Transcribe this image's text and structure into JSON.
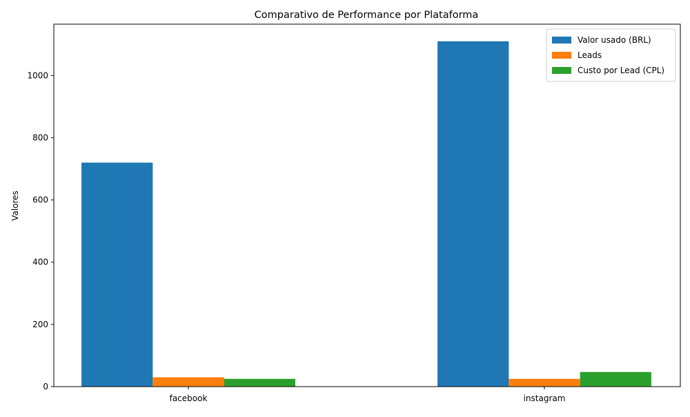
{
  "chart_data": {
    "type": "bar",
    "title": "Comparativo de Performance por Plataforma",
    "xlabel": "",
    "ylabel": "Valores",
    "categories": [
      "facebook",
      "instagram"
    ],
    "series": [
      {
        "name": "Valor usado (BRL)",
        "values": [
          720,
          1110
        ],
        "color": "#1f77b4"
      },
      {
        "name": "Leads",
        "values": [
          30,
          25
        ],
        "color": "#ff7f0e"
      },
      {
        "name": "Custo por Lead (CPL)",
        "values": [
          25,
          47
        ],
        "color": "#2ca02c"
      }
    ],
    "ylim": [
      0,
      1165
    ],
    "yticks": [
      0,
      200,
      400,
      600,
      800,
      1000
    ],
    "grid": false,
    "legend_position": "top-right"
  }
}
